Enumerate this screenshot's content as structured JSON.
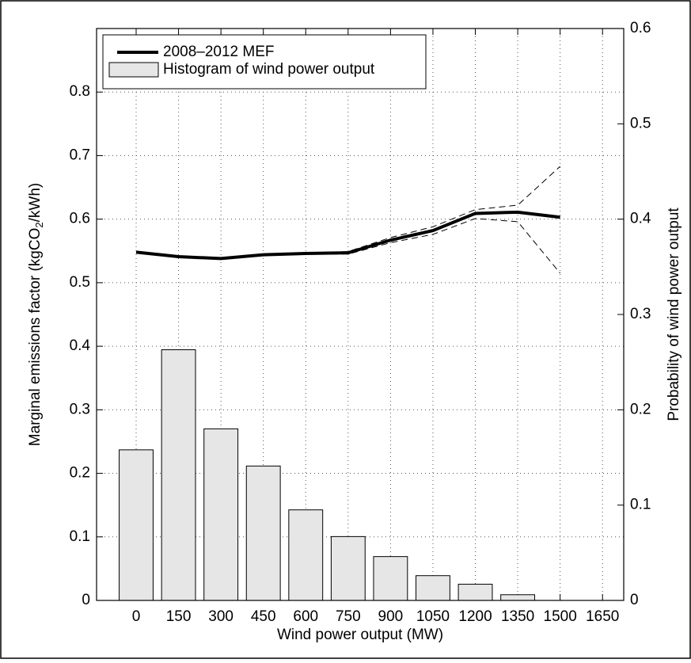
{
  "chart_data": {
    "type": "bar-line",
    "xlabel": "Wind power output (MW)",
    "ylabel_parts": [
      "Marginal emissions factor (kgCO",
      "2",
      "/kWh)"
    ],
    "y2label": "Probability of wind power output",
    "x": [
      0,
      150,
      300,
      450,
      600,
      750,
      900,
      1050,
      1200,
      1350,
      1500,
      1650
    ],
    "xlim": [
      -140,
      1725
    ],
    "xticks": [
      0,
      150,
      300,
      450,
      600,
      750,
      900,
      1050,
      1200,
      1350,
      1500,
      1650
    ],
    "ylim": [
      0,
      0.9
    ],
    "yticks": [
      0,
      0.1,
      0.2,
      0.3,
      0.4,
      0.5,
      0.6,
      0.7,
      0.8
    ],
    "y2lim": [
      0,
      0.6
    ],
    "y2ticks": [
      0,
      0.1,
      0.2,
      0.3,
      0.4,
      0.5,
      0.6
    ],
    "grid": true,
    "legend": "upper left",
    "series": [
      {
        "name": "2008–2012 MEF",
        "kind": "line",
        "color": "#000000",
        "axis": "y",
        "values": [
          0.548,
          0.541,
          0.538,
          0.544,
          0.546,
          0.547,
          0.567,
          0.582,
          0.609,
          0.611,
          0.603,
          null
        ]
      },
      {
        "kind": "dashed",
        "color": "#000000",
        "axis": "y",
        "values": [
          0.549,
          0.542,
          0.539,
          0.545,
          0.547,
          0.549,
          0.571,
          0.588,
          0.615,
          0.622,
          0.683,
          null
        ]
      },
      {
        "kind": "dashed",
        "color": "#000000",
        "axis": "y",
        "values": [
          0.547,
          0.54,
          0.537,
          0.543,
          0.545,
          0.545,
          0.563,
          0.576,
          0.601,
          0.596,
          0.515,
          null
        ]
      },
      {
        "name": "Histogram of wind power output",
        "kind": "bar",
        "color": "#e6e6e6",
        "axis": "y2",
        "values": [
          0.158,
          0.263,
          0.18,
          0.141,
          0.095,
          0.067,
          0.046,
          0.026,
          0.017,
          0.006,
          0,
          0
        ]
      }
    ]
  }
}
